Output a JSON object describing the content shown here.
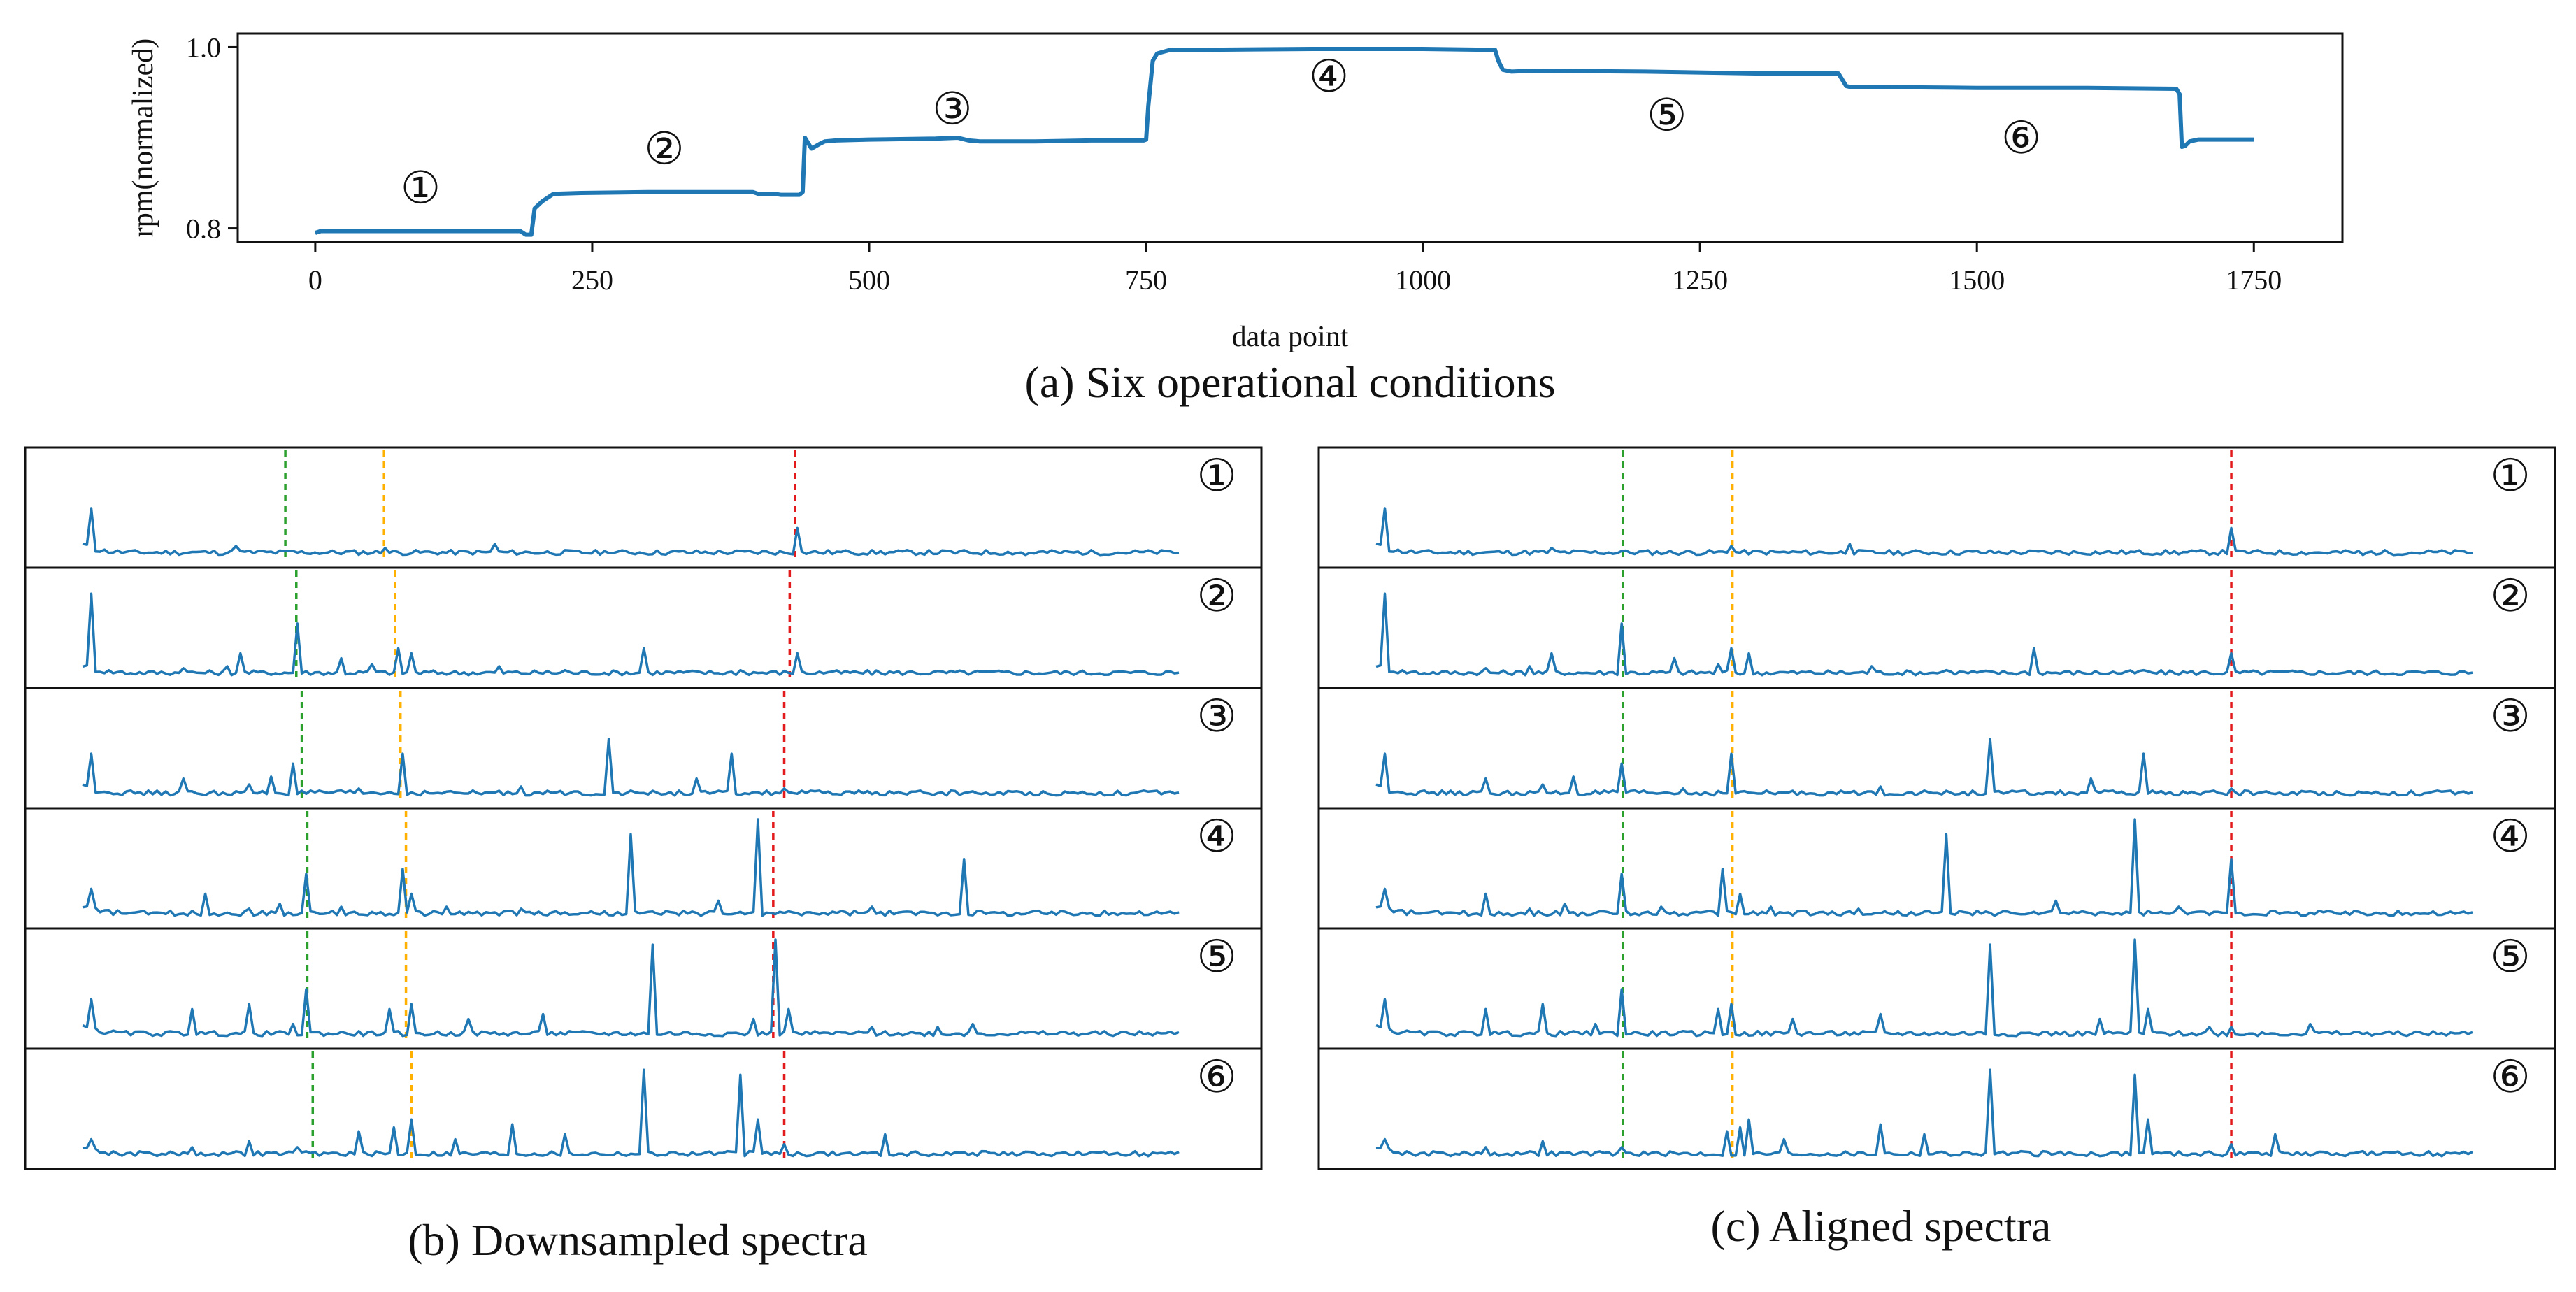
{
  "colors": {
    "series": "#1f77b4",
    "green": "#2ca02c",
    "orange": "#ffb000",
    "red": "#e31a1c"
  },
  "chart_data": [
    {
      "id": "a",
      "type": "line",
      "title": "",
      "caption": "(a) Six operational conditions",
      "xlabel": "data point",
      "ylabel": "rpm(normalized)",
      "xlim": [
        -70,
        1830
      ],
      "ylim": [
        0.785,
        1.015
      ],
      "xticks": [
        0,
        250,
        500,
        750,
        1000,
        1250,
        1500,
        1750
      ],
      "xtick_labels": [
        "0",
        "250",
        "500",
        "750",
        "1000",
        "1250",
        "1500",
        "1750"
      ],
      "yticks": [
        0.8,
        1.0
      ],
      "ytick_labels": [
        "0.8",
        "1.0"
      ],
      "series": [
        {
          "name": "rpm",
          "x": [
            0,
            5,
            10,
            60,
            120,
            150,
            180,
            185,
            190,
            195,
            198,
            205,
            215,
            240,
            300,
            350,
            395,
            400,
            415,
            420,
            430,
            437,
            440,
            442,
            448,
            455,
            460,
            470,
            500,
            560,
            580,
            590,
            600,
            650,
            700,
            748,
            750,
            752,
            756,
            760,
            766,
            772,
            780,
            800,
            900,
            1000,
            1060,
            1065,
            1068,
            1072,
            1080,
            1100,
            1200,
            1300,
            1375,
            1382,
            1386,
            1390,
            1400,
            1500,
            1600,
            1680,
            1683,
            1685,
            1688,
            1692,
            1700,
            1750
          ],
          "y": [
            0.795,
            0.797,
            0.797,
            0.797,
            0.797,
            0.797,
            0.797,
            0.797,
            0.793,
            0.793,
            0.822,
            0.83,
            0.838,
            0.839,
            0.84,
            0.84,
            0.84,
            0.838,
            0.838,
            0.837,
            0.837,
            0.837,
            0.84,
            0.9,
            0.888,
            0.893,
            0.896,
            0.897,
            0.898,
            0.899,
            0.9,
            0.897,
            0.896,
            0.896,
            0.897,
            0.897,
            0.898,
            0.935,
            0.985,
            0.993,
            0.995,
            0.997,
            0.997,
            0.997,
            0.998,
            0.998,
            0.997,
            0.997,
            0.985,
            0.975,
            0.973,
            0.974,
            0.973,
            0.971,
            0.971,
            0.957,
            0.956,
            0.956,
            0.956,
            0.955,
            0.955,
            0.954,
            0.948,
            0.89,
            0.891,
            0.896,
            0.898,
            0.898
          ]
        }
      ],
      "annotations": [
        {
          "label": "①",
          "x": 95,
          "y": 0.845
        },
        {
          "label": "②",
          "x": 315,
          "y": 0.888
        },
        {
          "label": "③",
          "x": 575,
          "y": 0.932
        },
        {
          "label": "④",
          "x": 915,
          "y": 0.968
        },
        {
          "label": "⑤",
          "x": 1220,
          "y": 0.925
        },
        {
          "label": "⑥",
          "x": 1540,
          "y": 0.9
        }
      ]
    },
    {
      "id": "b",
      "type": "line",
      "caption": "(b) Downsampled spectra",
      "xlim": [
        0,
        1000
      ],
      "ylim": [
        0,
        1
      ],
      "panels": [
        {
          "label": "①",
          "markers": {
            "green": 185,
            "orange": 275,
            "red": 650
          },
          "peaks": [
            [
              8,
              0.5
            ],
            [
              100,
              0.06
            ],
            [
              140,
              0.12
            ],
            [
              190,
              0.07
            ],
            [
              275,
              0.1
            ],
            [
              375,
              0.14
            ],
            [
              480,
              0.05
            ],
            [
              650,
              0.3
            ],
            [
              700,
              0.06
            ],
            [
              780,
              0.04
            ],
            [
              860,
              0.03
            ]
          ]
        },
        {
          "label": "②",
          "markers": {
            "green": 195,
            "orange": 285,
            "red": 645
          },
          "peaks": [
            [
              8,
              0.85
            ],
            [
              90,
              0.1
            ],
            [
              130,
              0.12
            ],
            [
              145,
              0.25
            ],
            [
              195,
              0.55
            ],
            [
              235,
              0.2
            ],
            [
              265,
              0.14
            ],
            [
              288,
              0.3
            ],
            [
              300,
              0.25
            ],
            [
              380,
              0.12
            ],
            [
              440,
              0.08
            ],
            [
              510,
              0.3
            ],
            [
              600,
              0.08
            ],
            [
              650,
              0.25
            ],
            [
              680,
              0.06
            ]
          ]
        },
        {
          "label": "③",
          "markers": {
            "green": 200,
            "orange": 290,
            "red": 640
          },
          "peaks": [
            [
              8,
              0.45
            ],
            [
              90,
              0.2
            ],
            [
              150,
              0.14
            ],
            [
              170,
              0.22
            ],
            [
              190,
              0.35
            ],
            [
              250,
              0.1
            ],
            [
              290,
              0.45
            ],
            [
              400,
              0.12
            ],
            [
              480,
              0.6
            ],
            [
              560,
              0.2
            ],
            [
              590,
              0.45
            ],
            [
              640,
              0.1
            ]
          ]
        },
        {
          "label": "④",
          "markers": {
            "green": 205,
            "orange": 295,
            "red": 630
          },
          "peaks": [
            [
              8,
              0.3
            ],
            [
              110,
              0.25
            ],
            [
              150,
              0.1
            ],
            [
              180,
              0.15
            ],
            [
              205,
              0.45
            ],
            [
              235,
              0.12
            ],
            [
              290,
              0.5
            ],
            [
              300,
              0.25
            ],
            [
              330,
              0.12
            ],
            [
              400,
              0.1
            ],
            [
              500,
              0.85
            ],
            [
              580,
              0.18
            ],
            [
              615,
              1.0
            ],
            [
              720,
              0.12
            ],
            [
              805,
              0.6
            ],
            [
              870,
              0.08
            ]
          ]
        },
        {
          "label": "⑤",
          "markers": {
            "green": 205,
            "orange": 295,
            "red": 630
          },
          "peaks": [
            [
              8,
              0.4
            ],
            [
              100,
              0.3
            ],
            [
              150,
              0.35
            ],
            [
              190,
              0.15
            ],
            [
              205,
              0.5
            ],
            [
              280,
              0.3
            ],
            [
              300,
              0.35
            ],
            [
              350,
              0.2
            ],
            [
              420,
              0.25
            ],
            [
              520,
              0.95
            ],
            [
              610,
              0.2
            ],
            [
              630,
              1.0
            ],
            [
              645,
              0.3
            ],
            [
              720,
              0.12
            ],
            [
              780,
              0.12
            ],
            [
              810,
              0.15
            ]
          ]
        },
        {
          "label": "⑥",
          "markers": {
            "green": 210,
            "orange": 300,
            "red": 640
          },
          "peaks": [
            [
              8,
              0.2
            ],
            [
              100,
              0.12
            ],
            [
              150,
              0.18
            ],
            [
              195,
              0.12
            ],
            [
              250,
              0.28
            ],
            [
              285,
              0.32
            ],
            [
              300,
              0.4
            ],
            [
              340,
              0.2
            ],
            [
              390,
              0.35
            ],
            [
              440,
              0.25
            ],
            [
              510,
              0.9
            ],
            [
              600,
              0.85
            ],
            [
              615,
              0.4
            ],
            [
              640,
              0.15
            ],
            [
              730,
              0.25
            ],
            [
              820,
              0.08
            ]
          ]
        }
      ]
    },
    {
      "id": "c",
      "type": "line",
      "caption": "(c) Aligned spectra",
      "xlim": [
        0,
        1000
      ],
      "ylim": [
        0,
        1
      ],
      "panels": [
        {
          "label": "①",
          "markers": {
            "green": 225,
            "orange": 325,
            "red": 780
          },
          "peaks": [
            [
              8,
              0.5
            ],
            [
              160,
              0.1
            ],
            [
              225,
              0.07
            ],
            [
              325,
              0.12
            ],
            [
              430,
              0.14
            ],
            [
              500,
              0.05
            ],
            [
              780,
              0.3
            ],
            [
              845,
              0.06
            ],
            [
              900,
              0.03
            ]
          ]
        },
        {
          "label": "②",
          "markers": {
            "green": 225,
            "orange": 325,
            "red": 780
          },
          "peaks": [
            [
              8,
              0.85
            ],
            [
              100,
              0.1
            ],
            [
              140,
              0.12
            ],
            [
              160,
              0.25
            ],
            [
              225,
              0.55
            ],
            [
              270,
              0.2
            ],
            [
              310,
              0.14
            ],
            [
              325,
              0.3
            ],
            [
              340,
              0.25
            ],
            [
              450,
              0.12
            ],
            [
              520,
              0.08
            ],
            [
              600,
              0.3
            ],
            [
              700,
              0.08
            ],
            [
              780,
              0.25
            ],
            [
              810,
              0.06
            ]
          ]
        },
        {
          "label": "③",
          "markers": {
            "green": 225,
            "orange": 325,
            "red": 780
          },
          "peaks": [
            [
              8,
              0.45
            ],
            [
              100,
              0.2
            ],
            [
              150,
              0.14
            ],
            [
              180,
              0.22
            ],
            [
              225,
              0.35
            ],
            [
              280,
              0.1
            ],
            [
              325,
              0.45
            ],
            [
              460,
              0.12
            ],
            [
              560,
              0.6
            ],
            [
              650,
              0.2
            ],
            [
              700,
              0.45
            ],
            [
              780,
              0.1
            ]
          ]
        },
        {
          "label": "④",
          "markers": {
            "green": 225,
            "orange": 325,
            "red": 780
          },
          "peaks": [
            [
              8,
              0.3
            ],
            [
              100,
              0.25
            ],
            [
              140,
              0.1
            ],
            [
              170,
              0.15
            ],
            [
              225,
              0.45
            ],
            [
              260,
              0.12
            ],
            [
              315,
              0.5
            ],
            [
              330,
              0.25
            ],
            [
              360,
              0.12
            ],
            [
              440,
              0.1
            ],
            [
              520,
              0.85
            ],
            [
              620,
              0.18
            ],
            [
              690,
              1.0
            ],
            [
              730,
              0.12
            ],
            [
              780,
              0.6
            ],
            [
              860,
              0.08
            ]
          ]
        },
        {
          "label": "⑤",
          "markers": {
            "green": 225,
            "orange": 325,
            "red": 780
          },
          "peaks": [
            [
              8,
              0.4
            ],
            [
              100,
              0.3
            ],
            [
              150,
              0.35
            ],
            [
              200,
              0.15
            ],
            [
              225,
              0.5
            ],
            [
              310,
              0.3
            ],
            [
              325,
              0.35
            ],
            [
              380,
              0.2
            ],
            [
              460,
              0.25
            ],
            [
              560,
              0.95
            ],
            [
              660,
              0.2
            ],
            [
              690,
              1.0
            ],
            [
              705,
              0.3
            ],
            [
              760,
              0.12
            ],
            [
              780,
              0.12
            ],
            [
              850,
              0.15
            ]
          ]
        },
        {
          "label": "⑥",
          "markers": {
            "green": 225,
            "orange": 325,
            "red": 780
          },
          "peaks": [
            [
              8,
              0.2
            ],
            [
              100,
              0.12
            ],
            [
              150,
              0.18
            ],
            [
              225,
              0.12
            ],
            [
              320,
              0.28
            ],
            [
              330,
              0.32
            ],
            [
              340,
              0.4
            ],
            [
              370,
              0.2
            ],
            [
              460,
              0.35
            ],
            [
              500,
              0.25
            ],
            [
              560,
              0.9
            ],
            [
              690,
              0.85
            ],
            [
              705,
              0.4
            ],
            [
              780,
              0.15
            ],
            [
              820,
              0.25
            ],
            [
              900,
              0.08
            ]
          ]
        }
      ]
    }
  ]
}
